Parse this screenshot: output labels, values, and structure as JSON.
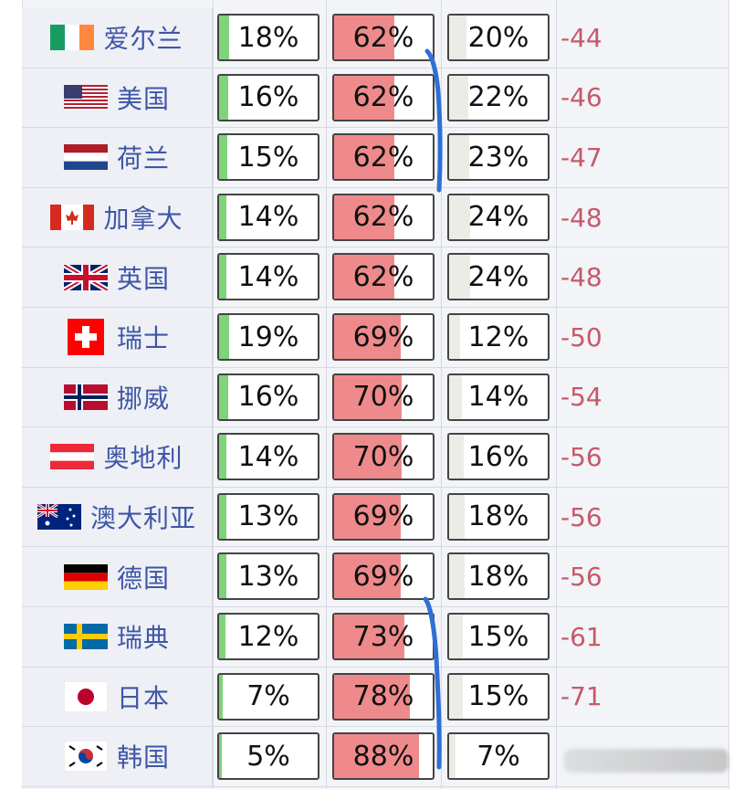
{
  "chart_data": {
    "type": "table",
    "columns": [
      "country",
      "pct_1",
      "pct_2",
      "pct_3",
      "net"
    ],
    "rows": [
      {
        "country": "爱尔兰",
        "flag_icon": "flag-ireland-icon",
        "a": 18,
        "b": 62,
        "c": 20,
        "a_label": "18%",
        "b_label": "62%",
        "c_label": "20%",
        "net": "-44"
      },
      {
        "country": "美国",
        "flag_icon": "flag-usa-icon",
        "a": 16,
        "b": 62,
        "c": 22,
        "a_label": "16%",
        "b_label": "62%",
        "c_label": "22%",
        "net": "-46"
      },
      {
        "country": "荷兰",
        "flag_icon": "flag-netherlands-icon",
        "a": 15,
        "b": 62,
        "c": 23,
        "a_label": "15%",
        "b_label": "62%",
        "c_label": "23%",
        "net": "-47"
      },
      {
        "country": "加拿大",
        "flag_icon": "flag-canada-icon",
        "a": 14,
        "b": 62,
        "c": 24,
        "a_label": "14%",
        "b_label": "62%",
        "c_label": "24%",
        "net": "-48"
      },
      {
        "country": "英国",
        "flag_icon": "flag-uk-icon",
        "a": 14,
        "b": 62,
        "c": 24,
        "a_label": "14%",
        "b_label": "62%",
        "c_label": "24%",
        "net": "-48"
      },
      {
        "country": "瑞士",
        "flag_icon": "flag-switzerland-icon",
        "a": 19,
        "b": 69,
        "c": 12,
        "a_label": "19%",
        "b_label": "69%",
        "c_label": "12%",
        "net": "-50"
      },
      {
        "country": "挪威",
        "flag_icon": "flag-norway-icon",
        "a": 16,
        "b": 70,
        "c": 14,
        "a_label": "16%",
        "b_label": "70%",
        "c_label": "14%",
        "net": "-54"
      },
      {
        "country": "奥地利",
        "flag_icon": "flag-austria-icon",
        "a": 14,
        "b": 70,
        "c": 16,
        "a_label": "14%",
        "b_label": "70%",
        "c_label": "16%",
        "net": "-56"
      },
      {
        "country": "澳大利亚",
        "flag_icon": "flag-australia-icon",
        "a": 13,
        "b": 69,
        "c": 18,
        "a_label": "13%",
        "b_label": "69%",
        "c_label": "18%",
        "net": "-56"
      },
      {
        "country": "德国",
        "flag_icon": "flag-germany-icon",
        "a": 13,
        "b": 69,
        "c": 18,
        "a_label": "13%",
        "b_label": "69%",
        "c_label": "18%",
        "net": "-56"
      },
      {
        "country": "瑞典",
        "flag_icon": "flag-sweden-icon",
        "a": 12,
        "b": 73,
        "c": 15,
        "a_label": "12%",
        "b_label": "73%",
        "c_label": "15%",
        "net": "-61"
      },
      {
        "country": "日本",
        "flag_icon": "flag-japan-icon",
        "a": 7,
        "b": 78,
        "c": 15,
        "a_label": "7%",
        "b_label": "78%",
        "c_label": "15%",
        "net": "-71"
      },
      {
        "country": "韩国",
        "flag_icon": "flag-korea-icon",
        "a": 5,
        "b": 88,
        "c": 7,
        "a_label": "5%",
        "b_label": "88%",
        "c_label": "7%",
        "net": ""
      }
    ]
  },
  "colors": {
    "positive": "#7fd37a",
    "negative": "#ef8a8c",
    "neutral": "#ecece6",
    "country_text": "#3f56a6",
    "net_text": "#c45a6a",
    "annotation": "#2f6fd6"
  },
  "annotation": {
    "type": "hand-drawn blue bracket lines",
    "icon": "bracket-annotation-icon"
  },
  "watermark": {
    "type": "blurred watermark",
    "icon": "watermark-icon"
  }
}
